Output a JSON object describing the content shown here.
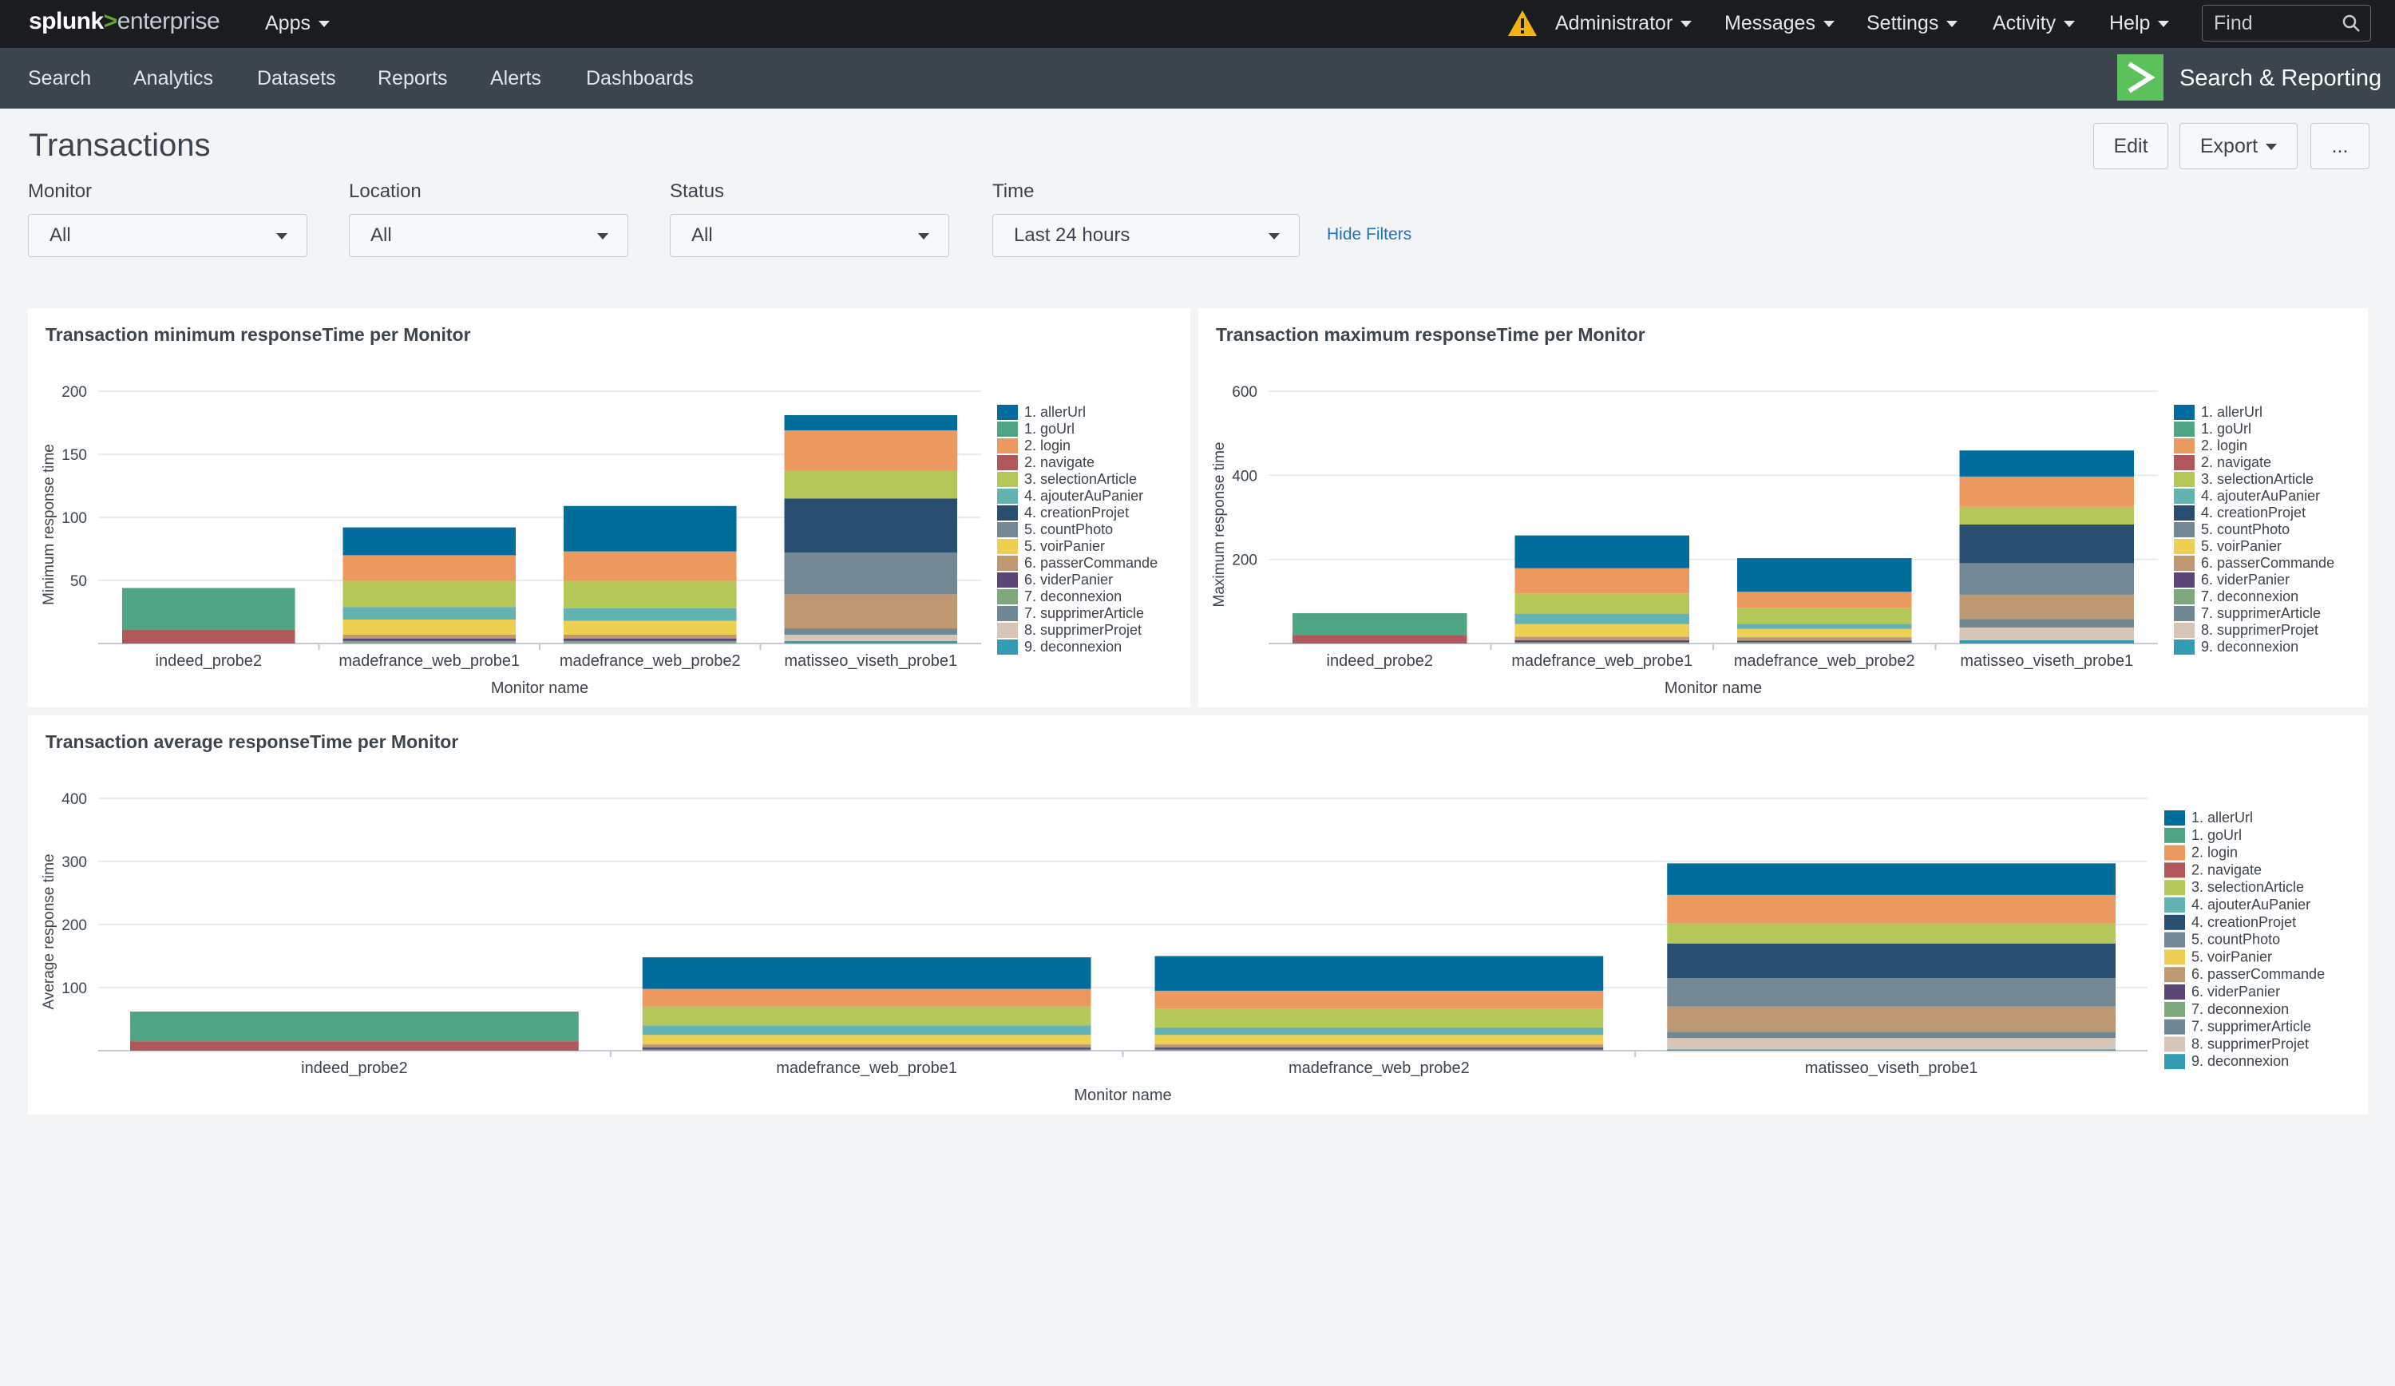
{
  "topbar": {
    "logo_part1": "splunk",
    "logo_part2": ">",
    "logo_part3": "enterprise",
    "apps": "Apps",
    "user": "Administrator",
    "messages": "Messages",
    "settings": "Settings",
    "activity": "Activity",
    "help": "Help",
    "find_placeholder": "Find",
    "colors": {
      "background": "#1a1c20",
      "warning": "#f1b30c",
      "brand": "#65a637"
    }
  },
  "appbar": {
    "items": [
      "Search",
      "Analytics",
      "Datasets",
      "Reports",
      "Alerts",
      "Dashboards"
    ],
    "app_title": "Search & Reporting",
    "app_icon": "app-chevron-icon",
    "colors": {
      "background": "#3c444d",
      "app_icon": "#5cc05c"
    }
  },
  "page": {
    "title": "Transactions",
    "buttons": {
      "edit": "Edit",
      "export": "Export",
      "more": "..."
    }
  },
  "filters": {
    "monitor": {
      "label": "Monitor",
      "value": "All"
    },
    "location": {
      "label": "Location",
      "value": "All"
    },
    "status": {
      "label": "Status",
      "value": "All"
    },
    "time": {
      "label": "Time",
      "value": "Last 24 hours"
    },
    "hide_filters": "Hide Filters"
  },
  "legend_colors": [
    "#006d9c",
    "#4fa484",
    "#ec9960",
    "#af575a",
    "#b6c75a",
    "#62b3b2",
    "#294e70",
    "#738795",
    "#edd051",
    "#bd9872",
    "#5a4575",
    "#7ea77b",
    "#708794",
    "#d7c6b7",
    "#339bb2"
  ],
  "chart_data": [
    {
      "type": "bar",
      "stacked": true,
      "title": "Transaction minimum responseTime per Monitor",
      "xlabel": "Monitor name",
      "ylabel": "Minimum response time",
      "yticks": [
        50,
        100,
        150,
        200
      ],
      "ylim": [
        0,
        200
      ],
      "grid": true,
      "legend_position": "right",
      "categories": [
        "indeed_probe2",
        "madefrance_web_probe1",
        "madefrance_web_probe2",
        "matisseo_viseth_probe1"
      ],
      "series": [
        {
          "name": "1. allerUrl",
          "values": [
            0,
            22,
            36,
            12
          ]
        },
        {
          "name": "1. goUrl",
          "values": [
            33,
            0,
            0,
            0
          ]
        },
        {
          "name": "2. login",
          "values": [
            0,
            20,
            23,
            32
          ]
        },
        {
          "name": "2. navigate",
          "values": [
            11,
            0,
            0,
            0
          ]
        },
        {
          "name": "3. selectionArticle",
          "values": [
            0,
            21,
            22,
            22
          ]
        },
        {
          "name": "4. ajouterAuPanier",
          "values": [
            0,
            10,
            10,
            0
          ]
        },
        {
          "name": "4. creationProjet",
          "values": [
            0,
            0,
            0,
            43
          ]
        },
        {
          "name": "5. countPhoto",
          "values": [
            0,
            0,
            0,
            33
          ]
        },
        {
          "name": "5. voirPanier",
          "values": [
            0,
            12,
            11,
            0
          ]
        },
        {
          "name": "6. passerCommande",
          "values": [
            0,
            3,
            3,
            27
          ]
        },
        {
          "name": "6. viderPanier",
          "values": [
            0,
            2,
            2,
            0
          ]
        },
        {
          "name": "7. deconnexion",
          "values": [
            0,
            2,
            2,
            0
          ]
        },
        {
          "name": "7. supprimerArticle",
          "values": [
            0,
            0,
            0,
            5
          ]
        },
        {
          "name": "8. supprimerProjet",
          "values": [
            0,
            0,
            0,
            5
          ]
        },
        {
          "name": "9. deconnexion",
          "values": [
            0,
            0,
            0,
            2
          ]
        }
      ]
    },
    {
      "type": "bar",
      "stacked": true,
      "title": "Transaction maximum responseTime per Monitor",
      "xlabel": "Monitor name",
      "ylabel": "Maximum response time",
      "yticks": [
        200,
        400,
        600
      ],
      "ylim": [
        0,
        600
      ],
      "grid": true,
      "legend_position": "right",
      "categories": [
        "indeed_probe2",
        "madefrance_web_probe1",
        "madefrance_web_probe2",
        "matisseo_viseth_probe1"
      ],
      "series": [
        {
          "name": "1. allerUrl",
          "values": [
            0,
            78,
            80,
            62
          ]
        },
        {
          "name": "1. goUrl",
          "values": [
            52,
            0,
            0,
            0
          ]
        },
        {
          "name": "2. login",
          "values": [
            0,
            60,
            38,
            72
          ]
        },
        {
          "name": "2. navigate",
          "values": [
            20,
            0,
            0,
            0
          ]
        },
        {
          "name": "3. selectionArticle",
          "values": [
            0,
            48,
            38,
            42
          ]
        },
        {
          "name": "4. ajouterAuPanier",
          "values": [
            0,
            25,
            12,
            0
          ]
        },
        {
          "name": "4. creationProjet",
          "values": [
            0,
            0,
            0,
            92
          ]
        },
        {
          "name": "5. countPhoto",
          "values": [
            0,
            0,
            0,
            75
          ]
        },
        {
          "name": "5. voirPanier",
          "values": [
            0,
            30,
            20,
            0
          ]
        },
        {
          "name": "6. passerCommande",
          "values": [
            0,
            8,
            8,
            58
          ]
        },
        {
          "name": "6. viderPanier",
          "values": [
            0,
            5,
            4,
            0
          ]
        },
        {
          "name": "7. deconnexion",
          "values": [
            0,
            3,
            3,
            0
          ]
        },
        {
          "name": "7. supprimerArticle",
          "values": [
            0,
            0,
            0,
            20
          ]
        },
        {
          "name": "8. supprimerProjet",
          "values": [
            0,
            0,
            0,
            30
          ]
        },
        {
          "name": "9. deconnexion",
          "values": [
            0,
            0,
            0,
            8
          ]
        }
      ]
    },
    {
      "type": "bar",
      "stacked": true,
      "title": "Transaction average responseTime per Monitor",
      "xlabel": "Monitor name",
      "ylabel": "Average response time",
      "yticks": [
        100,
        200,
        300,
        400
      ],
      "ylim": [
        0,
        400
      ],
      "grid": true,
      "legend_position": "right",
      "categories": [
        "indeed_probe2",
        "madefrance_web_probe1",
        "madefrance_web_probe2",
        "matisseo_viseth_probe1"
      ],
      "series": [
        {
          "name": "1. allerUrl",
          "values": [
            0,
            50,
            55,
            50
          ]
        },
        {
          "name": "1. goUrl",
          "values": [
            47,
            0,
            0,
            0
          ]
        },
        {
          "name": "2. login",
          "values": [
            0,
            28,
            28,
            45
          ]
        },
        {
          "name": "2. navigate",
          "values": [
            15,
            0,
            0,
            0
          ]
        },
        {
          "name": "3. selectionArticle",
          "values": [
            0,
            30,
            30,
            32
          ]
        },
        {
          "name": "4. ajouterAuPanier",
          "values": [
            0,
            15,
            12,
            0
          ]
        },
        {
          "name": "4. creationProjet",
          "values": [
            0,
            0,
            0,
            55
          ]
        },
        {
          "name": "5. countPhoto",
          "values": [
            0,
            0,
            0,
            45
          ]
        },
        {
          "name": "5. voirPanier",
          "values": [
            0,
            15,
            15,
            0
          ]
        },
        {
          "name": "6. passerCommande",
          "values": [
            0,
            5,
            5,
            40
          ]
        },
        {
          "name": "6. viderPanier",
          "values": [
            0,
            3,
            3,
            0
          ]
        },
        {
          "name": "7. deconnexion",
          "values": [
            0,
            2,
            2,
            0
          ]
        },
        {
          "name": "7. supprimerArticle",
          "values": [
            0,
            0,
            0,
            10
          ]
        },
        {
          "name": "8. supprimerProjet",
          "values": [
            0,
            0,
            0,
            18
          ]
        },
        {
          "name": "9. deconnexion",
          "values": [
            0,
            0,
            0,
            2
          ]
        }
      ]
    }
  ]
}
